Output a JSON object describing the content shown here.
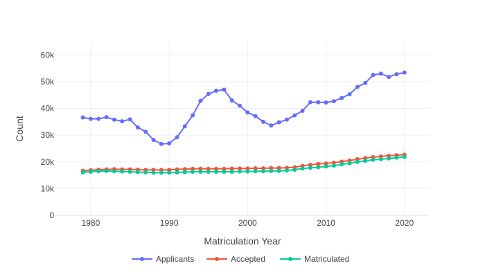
{
  "chart_data": {
    "type": "line",
    "xlabel": "Matriculation Year",
    "ylabel": "Count",
    "x": [
      1979,
      1980,
      1981,
      1982,
      1983,
      1984,
      1985,
      1986,
      1987,
      1988,
      1989,
      1990,
      1991,
      1992,
      1993,
      1994,
      1995,
      1996,
      1997,
      1998,
      1999,
      2000,
      2001,
      2002,
      2003,
      2004,
      2005,
      2006,
      2007,
      2008,
      2009,
      2010,
      2011,
      2012,
      2013,
      2014,
      2015,
      2016,
      2017,
      2018,
      2019,
      2020
    ],
    "xlim": [
      1975.5,
      2023.2
    ],
    "ylim": [
      0,
      65000
    ],
    "xticks": [
      1980,
      1990,
      2000,
      2010,
      2020
    ],
    "yticks": [
      0,
      10000,
      20000,
      30000,
      40000,
      50000,
      60000
    ],
    "ytick_labels": [
      "0",
      "10k",
      "20k",
      "30k",
      "40k",
      "50k",
      "60k"
    ],
    "grid": true,
    "legend_position": "bottom",
    "series": [
      {
        "name": "Applicants",
        "color": "#636efa",
        "values": [
          36600,
          36100,
          36100,
          36700,
          35800,
          35200,
          35900,
          32900,
          31300,
          28200,
          26700,
          26900,
          29200,
          33300,
          37400,
          42800,
          45400,
          46600,
          47000,
          43000,
          41000,
          38500,
          37100,
          35000,
          33600,
          34800,
          35800,
          37400,
          39100,
          42300,
          42300,
          42200,
          42700,
          43900,
          45300,
          48000,
          49500,
          52500,
          53000,
          51800,
          52800,
          53400
        ]
      },
      {
        "name": "Accepted",
        "color": "#ef553b",
        "values": [
          16700,
          16900,
          17100,
          17200,
          17300,
          17200,
          17200,
          17100,
          17000,
          17000,
          17000,
          17000,
          17200,
          17300,
          17400,
          17400,
          17400,
          17400,
          17400,
          17500,
          17500,
          17500,
          17600,
          17600,
          17700,
          17700,
          17800,
          18000,
          18500,
          18900,
          19200,
          19400,
          19700,
          20100,
          20500,
          21000,
          21400,
          21800,
          22000,
          22300,
          22500,
          22700
        ]
      },
      {
        "name": "Matriculated",
        "color": "#00cc96",
        "values": [
          16100,
          16300,
          16500,
          16600,
          16500,
          16400,
          16300,
          16200,
          16100,
          16000,
          16000,
          16000,
          16100,
          16200,
          16300,
          16300,
          16300,
          16300,
          16300,
          16300,
          16400,
          16400,
          16500,
          16500,
          16600,
          16600,
          16800,
          17100,
          17500,
          17800,
          18000,
          18300,
          18600,
          19100,
          19500,
          20000,
          20400,
          20800,
          21000,
          21300,
          21600,
          21900
        ]
      }
    ]
  }
}
